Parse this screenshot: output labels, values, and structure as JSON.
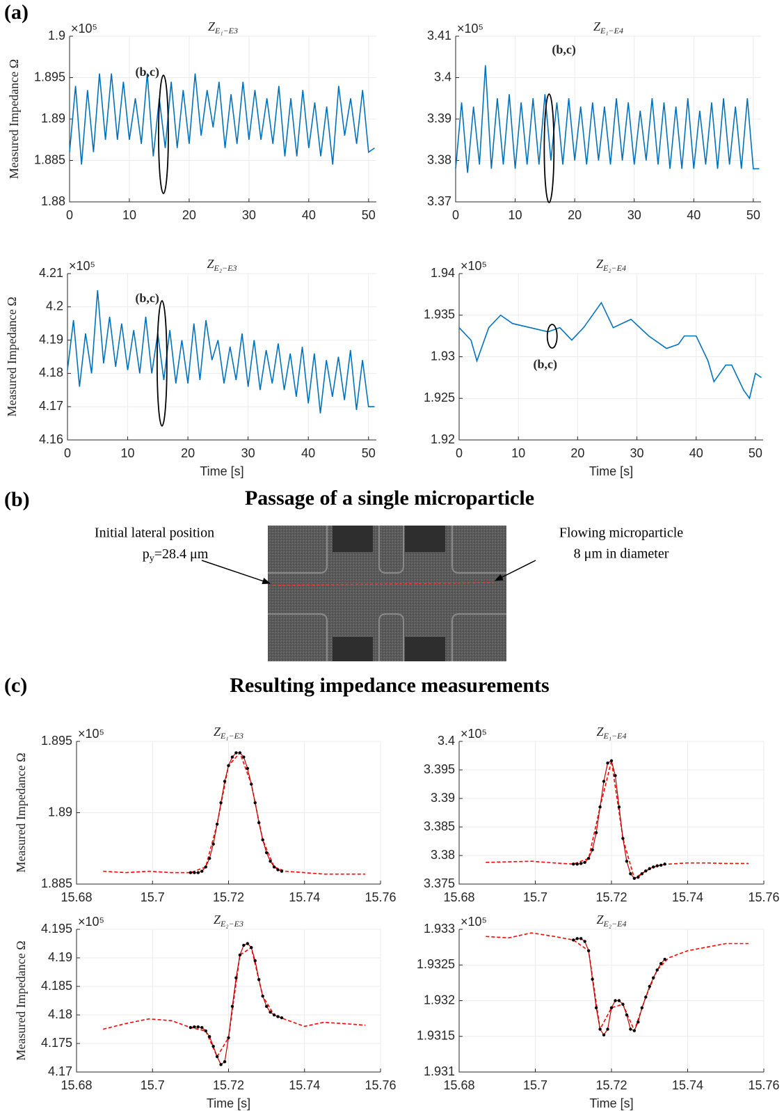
{
  "labels": {
    "panel_a": "(a)",
    "panel_b": "(b)",
    "panel_c": "(c)",
    "b_title": "Passage of a single microparticle",
    "c_title": "Resulting impedance measurements",
    "left_line1": "Initial lateral position",
    "left_p": "p",
    "left_sub": "y",
    "left_rest": "=28.4 μm",
    "right_line1": "Flowing microparticle",
    "right_line2": "8 μm in diameter"
  },
  "chart_data": [
    {
      "type": "line",
      "title": "Z",
      "title_subscript": "E₁−E3",
      "ylabel": "Measured Impedance Ω",
      "y_scale_label": "×10⁵",
      "xlim": [
        0,
        51.3
      ],
      "xticks": [
        0,
        10,
        20,
        30,
        40,
        50
      ],
      "ylim": [
        1.88,
        1.9
      ],
      "yticks": [
        1.88,
        1.885,
        1.89,
        1.895,
        1.9
      ],
      "grid": true,
      "annotation": {
        "text": "(b,c)",
        "x": 15.7
      },
      "x": [
        0,
        1,
        2,
        3,
        4,
        5,
        6,
        7,
        8,
        9,
        10,
        11,
        12,
        13,
        14,
        15,
        16,
        17,
        18,
        19,
        20,
        21,
        22,
        23,
        24,
        25,
        26,
        27,
        28,
        29,
        30,
        31,
        32,
        33,
        34,
        35,
        36,
        37,
        38,
        39,
        40,
        41,
        42,
        43,
        44,
        45,
        46,
        47,
        48,
        49,
        50,
        51
      ],
      "series": [
        {
          "color": "#0072bd",
          "values": [
            1.886,
            1.894,
            1.8845,
            1.8935,
            1.886,
            1.8955,
            1.8875,
            1.8955,
            1.8875,
            1.8945,
            1.8875,
            1.8925,
            1.887,
            1.8955,
            1.8855,
            1.8925,
            1.8865,
            1.8945,
            1.8865,
            1.8935,
            1.887,
            1.8955,
            1.888,
            1.8935,
            1.889,
            1.8945,
            1.8865,
            1.893,
            1.887,
            1.8945,
            1.8875,
            1.8935,
            1.8875,
            1.8925,
            1.887,
            1.894,
            1.8855,
            1.8925,
            1.8855,
            1.8935,
            1.8865,
            1.892,
            1.8855,
            1.8915,
            1.8845,
            1.894,
            1.888,
            1.8925,
            1.887,
            1.8935,
            1.886,
            1.8865
          ]
        }
      ]
    },
    {
      "type": "line",
      "title": "Z",
      "title_subscript": "E₁−E4",
      "y_scale_label": "×10⁵",
      "xlim": [
        0,
        51.3
      ],
      "xticks": [
        0,
        10,
        20,
        30,
        40,
        50
      ],
      "ylim": [
        3.37,
        3.41
      ],
      "yticks": [
        3.37,
        3.38,
        3.39,
        3.4,
        3.41
      ],
      "grid": true,
      "annotation": {
        "text": "(b,c)",
        "x": 15.7
      },
      "x": [
        0,
        1,
        2,
        3,
        4,
        5,
        6,
        7,
        8,
        9,
        10,
        11,
        12,
        13,
        14,
        15,
        16,
        17,
        18,
        19,
        20,
        21,
        22,
        23,
        24,
        25,
        26,
        27,
        28,
        29,
        30,
        31,
        32,
        33,
        34,
        35,
        36,
        37,
        38,
        39,
        40,
        41,
        42,
        43,
        44,
        45,
        46,
        47,
        48,
        49,
        50,
        51
      ],
      "series": [
        {
          "color": "#0072bd",
          "values": [
            3.378,
            3.394,
            3.377,
            3.393,
            3.379,
            3.403,
            3.378,
            3.395,
            3.379,
            3.396,
            3.378,
            3.394,
            3.379,
            3.395,
            3.379,
            3.396,
            3.38,
            3.394,
            3.379,
            3.395,
            3.38,
            3.393,
            3.379,
            3.394,
            3.38,
            3.393,
            3.379,
            3.395,
            3.38,
            3.394,
            3.379,
            3.392,
            3.38,
            3.395,
            3.379,
            3.394,
            3.378,
            3.393,
            3.378,
            3.395,
            3.378,
            3.392,
            3.379,
            3.394,
            3.378,
            3.395,
            3.379,
            3.393,
            3.378,
            3.395,
            3.378,
            3.378
          ]
        }
      ]
    },
    {
      "type": "line",
      "title": "Z",
      "title_subscript": "E₂−E3",
      "ylabel": "Measured Impedance Ω",
      "xlabel": "Time [s]",
      "y_scale_label": "×10⁵",
      "xlim": [
        0,
        51.3
      ],
      "xticks": [
        0,
        10,
        20,
        30,
        40,
        50
      ],
      "ylim": [
        4.16,
        4.21
      ],
      "yticks": [
        4.16,
        4.17,
        4.18,
        4.19,
        4.2,
        4.21
      ],
      "grid": true,
      "annotation": {
        "text": "(b,c)",
        "x": 15.7
      },
      "x": [
        0,
        1,
        2,
        3,
        4,
        5,
        6,
        7,
        8,
        9,
        10,
        11,
        12,
        13,
        14,
        15,
        16,
        17,
        18,
        19,
        20,
        21,
        22,
        23,
        24,
        25,
        26,
        27,
        28,
        29,
        30,
        31,
        32,
        33,
        34,
        35,
        36,
        37,
        38,
        39,
        40,
        41,
        42,
        43,
        44,
        45,
        46,
        47,
        48,
        49,
        50,
        51
      ],
      "series": [
        {
          "color": "#0072bd",
          "values": [
            4.181,
            4.196,
            4.176,
            4.192,
            4.18,
            4.205,
            4.183,
            4.197,
            4.182,
            4.195,
            4.181,
            4.193,
            4.18,
            4.197,
            4.18,
            4.192,
            4.178,
            4.193,
            4.177,
            4.19,
            4.177,
            4.195,
            4.178,
            4.196,
            4.184,
            4.19,
            4.177,
            4.188,
            4.178,
            4.192,
            4.176,
            4.19,
            4.175,
            4.187,
            4.177,
            4.189,
            4.175,
            4.186,
            4.173,
            4.188,
            4.171,
            4.186,
            4.168,
            4.184,
            4.173,
            4.185,
            4.172,
            4.187,
            4.169,
            4.184,
            4.17,
            4.17
          ]
        }
      ]
    },
    {
      "type": "line",
      "title": "Z",
      "title_subscript": "E₂−E4",
      "xlabel": "Time [s]",
      "y_scale_label": "×10⁵",
      "xlim": [
        0,
        51.3
      ],
      "xticks": [
        0,
        10,
        20,
        30,
        40,
        50
      ],
      "ylim": [
        1.92,
        1.94
      ],
      "yticks": [
        1.92,
        1.925,
        1.93,
        1.935,
        1.94
      ],
      "grid": true,
      "annotation": {
        "text": "(b,c)",
        "x": 15.7
      },
      "x": [
        0,
        2,
        3,
        5,
        7,
        9,
        12,
        15,
        17,
        19,
        21,
        24,
        26,
        29,
        32,
        35,
        37,
        38,
        40,
        42,
        43,
        45,
        46,
        48,
        49,
        50,
        51
      ],
      "series": [
        {
          "color": "#0072bd",
          "values": [
            1.9335,
            1.932,
            1.9295,
            1.9335,
            1.935,
            1.934,
            1.9335,
            1.933,
            1.9335,
            1.932,
            1.9335,
            1.9365,
            1.9335,
            1.9345,
            1.9325,
            1.931,
            1.9315,
            1.9325,
            1.9325,
            1.9295,
            1.927,
            1.929,
            1.929,
            1.926,
            1.925,
            1.928,
            1.9275
          ]
        }
      ]
    },
    {
      "type": "line",
      "title": "Z",
      "title_subscript": "E₁−E3",
      "ylabel": "Measured Impedance Ω",
      "y_scale_label": "×10⁵",
      "xlim": [
        15.68,
        15.76
      ],
      "xticks": [
        15.68,
        15.7,
        15.72,
        15.74,
        15.76
      ],
      "ylim": [
        1.885,
        1.895
      ],
      "yticks": [
        1.885,
        1.89,
        1.895
      ],
      "grid": true,
      "series": [
        {
          "color": "#ff0000",
          "dashed": true,
          "x": [
            15.687,
            15.693,
            15.699,
            15.705,
            15.71,
            15.714,
            15.717,
            15.72,
            15.723,
            15.726,
            15.729,
            15.732,
            15.735,
            15.74,
            15.745,
            15.75,
            15.756
          ],
          "values": [
            1.8859,
            1.8858,
            1.8859,
            1.8858,
            1.8858,
            1.8862,
            1.8892,
            1.8933,
            1.8942,
            1.892,
            1.8881,
            1.8862,
            1.8859,
            1.8858,
            1.8857,
            1.8857,
            1.8857
          ]
        },
        {
          "color": "#c00000",
          "markers": true,
          "x": [
            15.71,
            15.711,
            15.712,
            15.713,
            15.714,
            15.715,
            15.716,
            15.717,
            15.718,
            15.719,
            15.72,
            15.721,
            15.722,
            15.723,
            15.724,
            15.725,
            15.726,
            15.727,
            15.728,
            15.729,
            15.73,
            15.731,
            15.732,
            15.733,
            15.734
          ],
          "values": [
            1.8858,
            1.8858,
            1.8858,
            1.8859,
            1.8862,
            1.8868,
            1.8878,
            1.8892,
            1.8907,
            1.8922,
            1.8933,
            1.8939,
            1.8942,
            1.8942,
            1.8939,
            1.8931,
            1.892,
            1.8907,
            1.8893,
            1.8881,
            1.8872,
            1.8866,
            1.8862,
            1.886,
            1.8859
          ]
        }
      ]
    },
    {
      "type": "line",
      "title": "Z",
      "title_subscript": "E₁−E4",
      "y_scale_label": "×10⁵",
      "xlim": [
        15.68,
        15.76
      ],
      "xticks": [
        15.68,
        15.7,
        15.72,
        15.74,
        15.76
      ],
      "ylim": [
        3.375,
        3.4
      ],
      "yticks": [
        3.375,
        3.38,
        3.385,
        3.39,
        3.395,
        3.4
      ],
      "grid": true,
      "series": [
        {
          "color": "#ff0000",
          "dashed": true,
          "x": [
            15.687,
            15.693,
            15.699,
            15.705,
            15.71,
            15.714,
            15.717,
            15.72,
            15.723,
            15.726,
            15.729,
            15.732,
            15.735,
            15.74,
            15.745,
            15.75,
            15.756
          ],
          "values": [
            3.3788,
            3.3789,
            3.379,
            3.3787,
            3.3785,
            3.3795,
            3.3885,
            3.3966,
            3.383,
            3.376,
            3.3773,
            3.3782,
            3.3785,
            3.3787,
            3.3787,
            3.3786,
            3.3786
          ]
        },
        {
          "color": "#c00000",
          "markers": true,
          "x": [
            15.71,
            15.711,
            15.712,
            15.713,
            15.714,
            15.715,
            15.716,
            15.717,
            15.718,
            15.719,
            15.72,
            15.721,
            15.722,
            15.723,
            15.724,
            15.725,
            15.726,
            15.727,
            15.728,
            15.729,
            15.73,
            15.731,
            15.732,
            15.733,
            15.734
          ],
          "values": [
            3.3785,
            3.3785,
            3.3786,
            3.3788,
            3.3795,
            3.381,
            3.384,
            3.3885,
            3.393,
            3.3962,
            3.3966,
            3.394,
            3.3885,
            3.383,
            3.379,
            3.3768,
            3.376,
            3.3762,
            3.3768,
            3.3773,
            3.3777,
            3.378,
            3.3782,
            3.3783,
            3.3785
          ]
        }
      ]
    },
    {
      "type": "line",
      "title": "Z",
      "title_subscript": "E₂−E3",
      "ylabel": "Measured Impedance Ω",
      "xlabel": "Time [s]",
      "y_scale_label": "×10⁵",
      "xlim": [
        15.68,
        15.76
      ],
      "xticks": [
        15.68,
        15.7,
        15.72,
        15.74,
        15.76
      ],
      "ylim": [
        4.17,
        4.195
      ],
      "yticks": [
        4.17,
        4.175,
        4.18,
        4.185,
        4.19,
        4.195
      ],
      "grid": true,
      "series": [
        {
          "color": "#ff0000",
          "dashed": true,
          "x": [
            15.687,
            15.693,
            15.699,
            15.705,
            15.71,
            15.714,
            15.717,
            15.72,
            15.723,
            15.726,
            15.729,
            15.732,
            15.735,
            15.74,
            15.745,
            15.75,
            15.756
          ],
          "values": [
            4.1775,
            4.1785,
            4.1793,
            4.179,
            4.1778,
            4.1772,
            4.1727,
            4.176,
            4.1905,
            4.1918,
            4.1833,
            4.18,
            4.1792,
            4.178,
            4.1787,
            4.1785,
            4.1782
          ]
        },
        {
          "color": "#c00000",
          "markers": true,
          "x": [
            15.71,
            15.711,
            15.712,
            15.713,
            15.714,
            15.715,
            15.716,
            15.717,
            15.718,
            15.719,
            15.72,
            15.721,
            15.722,
            15.723,
            15.724,
            15.725,
            15.726,
            15.727,
            15.728,
            15.729,
            15.73,
            15.731,
            15.732,
            15.733,
            15.734
          ],
          "values": [
            4.1778,
            4.1779,
            4.1779,
            4.1778,
            4.1772,
            4.1762,
            4.1745,
            4.1727,
            4.1713,
            4.1718,
            4.176,
            4.1815,
            4.1865,
            4.1905,
            4.1922,
            4.1925,
            4.1918,
            4.1895,
            4.1862,
            4.1833,
            4.1815,
            4.1805,
            4.18,
            4.1797,
            4.1795
          ]
        }
      ]
    },
    {
      "type": "line",
      "title": "Z",
      "title_subscript": "E₂−E4",
      "xlabel": "Time [s]",
      "y_scale_label": "×10⁵",
      "xlim": [
        15.68,
        15.76
      ],
      "xticks": [
        15.68,
        15.7,
        15.72,
        15.74,
        15.76
      ],
      "ylim": [
        1.931,
        1.933
      ],
      "yticks": [
        1.931,
        1.9315,
        1.932,
        1.9325,
        1.933
      ],
      "grid": true,
      "series": [
        {
          "color": "#ff0000",
          "dashed": true,
          "x": [
            15.687,
            15.693,
            15.699,
            15.705,
            15.71,
            15.714,
            15.717,
            15.72,
            15.723,
            15.726,
            15.729,
            15.732,
            15.735,
            15.74,
            15.745,
            15.75,
            15.756
          ],
          "values": [
            1.9329,
            1.93288,
            1.93295,
            1.9329,
            1.93285,
            1.9327,
            1.9316,
            1.9319,
            1.93195,
            1.93158,
            1.93205,
            1.93243,
            1.9326,
            1.9327,
            1.93275,
            1.9328,
            1.9328
          ]
        },
        {
          "color": "#c00000",
          "markers": true,
          "x": [
            15.71,
            15.711,
            15.712,
            15.713,
            15.714,
            15.715,
            15.716,
            15.717,
            15.718,
            15.719,
            15.72,
            15.721,
            15.722,
            15.723,
            15.724,
            15.725,
            15.726,
            15.727,
            15.728,
            15.729,
            15.73,
            15.731,
            15.732,
            15.733,
            15.734
          ],
          "values": [
            1.93285,
            1.93287,
            1.93287,
            1.93283,
            1.9327,
            1.9323,
            1.9319,
            1.9316,
            1.93152,
            1.9316,
            1.9319,
            1.932,
            1.932,
            1.93195,
            1.9318,
            1.9316,
            1.93158,
            1.9317,
            1.9319,
            1.93205,
            1.9322,
            1.93232,
            1.93243,
            1.93252,
            1.93258
          ]
        }
      ]
    }
  ]
}
